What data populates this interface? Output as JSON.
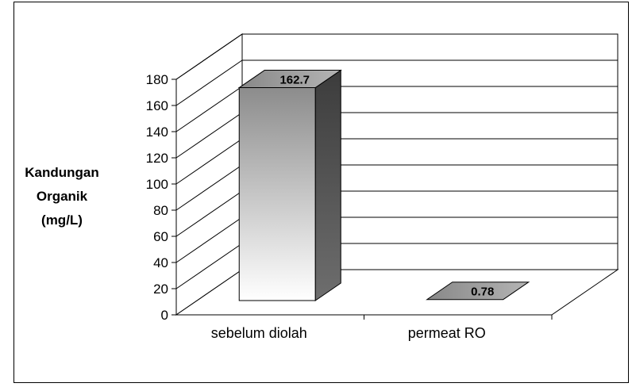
{
  "chart_data": {
    "type": "bar",
    "style": "3d",
    "categories": [
      "sebelum diolah",
      "permeat RO"
    ],
    "values": [
      162.7,
      0.78
    ],
    "value_labels": [
      "162.7",
      "0.78"
    ],
    "ylabel": "Kandungan\nOrganik\n(mg/L)",
    "ylim": [
      0,
      180
    ],
    "yticks": [
      0,
      20,
      40,
      60,
      80,
      100,
      120,
      140,
      160,
      180
    ],
    "grid": true,
    "legend": "none"
  }
}
